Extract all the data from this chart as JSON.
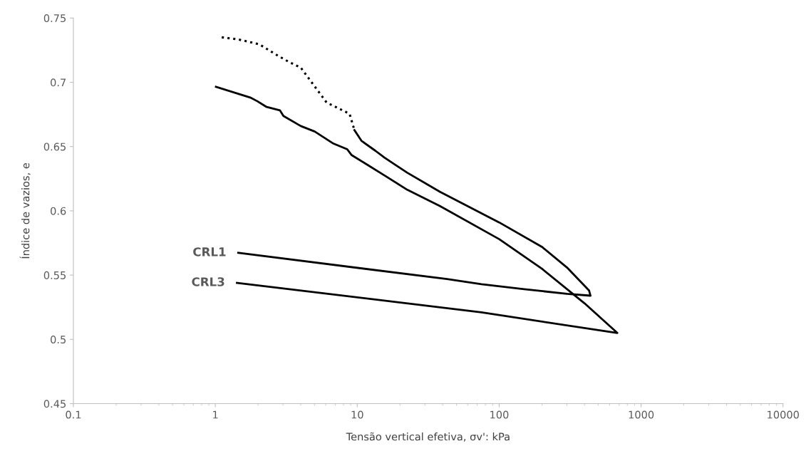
{
  "chart_data": {
    "type": "line",
    "xlabel": "Tensão vertical efetiva, σv': kPa",
    "ylabel": "Índice de vazios, e",
    "log": "x",
    "xlim": [
      0.1,
      10000
    ],
    "xticks": [
      0.1,
      1,
      10,
      100,
      1000,
      10000
    ],
    "ylim": [
      0.45,
      0.75
    ],
    "yticks": [
      0.45,
      0.5,
      0.55,
      0.6,
      0.65,
      0.7,
      0.75
    ],
    "grid": false,
    "legend": false,
    "marker": "none",
    "series": [
      {
        "color": "#000000",
        "line_style": "dotted",
        "x": [
          1.11,
          1.45,
          2.04,
          2.76,
          3.31,
          4.0,
          6.08,
          8.83,
          9.55
        ],
        "values": [
          0.735,
          0.7334,
          0.7296,
          0.7207,
          0.7158,
          0.7114,
          0.6843,
          0.6755,
          0.6628
        ]
      },
      {
        "name": "CRL1",
        "color": "#000000",
        "line_style": "solid",
        "x": [
          9.55,
          10.7,
          13.4,
          15.6,
          18.0,
          22.5,
          38.3,
          100,
          200,
          300,
          430,
          440,
          300,
          150,
          75,
          42.9,
          1.45
        ],
        "values": [
          0.6628,
          0.6545,
          0.6468,
          0.6413,
          0.6368,
          0.6297,
          0.6148,
          0.591,
          0.572,
          0.556,
          0.538,
          0.534,
          0.5355,
          0.539,
          0.543,
          0.5469,
          0.5673
        ]
      },
      {
        "name": "CRL3",
        "color": "#000000",
        "line_style": "solid",
        "x": [
          1.01,
          1.76,
          1.97,
          2.28,
          2.85,
          3.02,
          4.0,
          5.02,
          6.8,
          8.5,
          9.1,
          11.4,
          15.6,
          22.5,
          38.3,
          100,
          200,
          400,
          680,
          75,
          1.42
        ],
        "values": [
          0.6965,
          0.6882,
          0.6854,
          0.681,
          0.6782,
          0.6738,
          0.666,
          0.6617,
          0.6523,
          0.6479,
          0.6435,
          0.6368,
          0.6275,
          0.6164,
          0.6037,
          0.578,
          0.555,
          0.528,
          0.505,
          0.521,
          0.544
        ]
      }
    ]
  }
}
